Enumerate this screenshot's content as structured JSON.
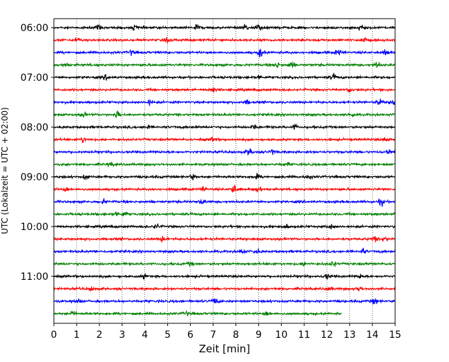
{
  "chart_data": {
    "type": "line",
    "chart_kind": "helicorder",
    "xlabel": "Zeit  [min]",
    "ylabel": "UTC (Lokalzeit = UTC + 02:00)",
    "xlim": [
      0,
      15
    ],
    "x_ticks": [
      "0",
      "1",
      "2",
      "3",
      "4",
      "5",
      "6",
      "7",
      "8",
      "9",
      "10",
      "11",
      "12",
      "13",
      "14",
      "15"
    ],
    "minutes_per_trace": 15,
    "row_labels": [
      {
        "row": 0,
        "text": "06:00"
      },
      {
        "row": 4,
        "text": "07:00"
      },
      {
        "row": 8,
        "text": "08:00"
      },
      {
        "row": 12,
        "text": "09:00"
      },
      {
        "row": 16,
        "text": "10:00"
      },
      {
        "row": 20,
        "text": "11:00"
      }
    ],
    "traces": [
      {
        "start": "06:00",
        "color": "#000000",
        "end_min": 15,
        "events": [
          [
            2.0,
            1.6
          ],
          [
            3.6,
            1.5
          ],
          [
            6.3,
            1.4
          ],
          [
            8.4,
            1.7
          ],
          [
            9.0,
            1.5
          ],
          [
            13.5,
            1.9
          ]
        ]
      },
      {
        "start": "06:15",
        "color": "#ff0000",
        "end_min": 15,
        "events": [
          [
            1.0,
            1.4
          ],
          [
            5.0,
            1.3
          ],
          [
            13.6,
            1.7
          ]
        ]
      },
      {
        "start": "06:30",
        "color": "#0000ff",
        "end_min": 15,
        "events": [
          [
            3.4,
            1.3
          ],
          [
            9.1,
            2.6
          ],
          [
            12.5,
            1.4
          ],
          [
            14.6,
            1.6
          ]
        ]
      },
      {
        "start": "06:45",
        "color": "#008000",
        "end_min": 15,
        "events": [
          [
            0.5,
            1.2
          ],
          [
            9.8,
            1.6
          ],
          [
            10.45,
            2.3
          ],
          [
            14.2,
            1.8
          ]
        ]
      },
      {
        "start": "07:00",
        "color": "#000000",
        "end_min": 15,
        "events": [
          [
            2.3,
            1.3
          ],
          [
            9.0,
            1.2
          ],
          [
            12.3,
            1.6
          ]
        ]
      },
      {
        "start": "07:15",
        "color": "#ff0000",
        "end_min": 15,
        "events": [
          [
            7.0,
            1.3
          ],
          [
            13.0,
            1.3
          ]
        ]
      },
      {
        "start": "07:30",
        "color": "#0000ff",
        "end_min": 15,
        "events": [
          [
            4.2,
            1.3
          ],
          [
            8.5,
            1.3
          ],
          [
            14.3,
            1.5
          ],
          [
            14.9,
            1.6
          ]
        ]
      },
      {
        "start": "07:45",
        "color": "#008000",
        "end_min": 15,
        "events": [
          [
            1.3,
            1.6
          ],
          [
            2.8,
            2.0
          ],
          [
            13.1,
            1.3
          ]
        ]
      },
      {
        "start": "08:00",
        "color": "#000000",
        "end_min": 15,
        "events": [
          [
            4.1,
            1.3
          ],
          [
            8.8,
            1.5
          ],
          [
            10.6,
            1.3
          ]
        ]
      },
      {
        "start": "08:15",
        "color": "#ff0000",
        "end_min": 15,
        "events": [
          [
            1.3,
            1.5
          ],
          [
            7.0,
            1.2
          ],
          [
            14.6,
            1.3
          ]
        ]
      },
      {
        "start": "08:30",
        "color": "#0000ff",
        "end_min": 15,
        "events": [
          [
            8.6,
            2.0
          ],
          [
            9.6,
            1.7
          ],
          [
            14.7,
            1.4
          ]
        ]
      },
      {
        "start": "08:45",
        "color": "#008000",
        "end_min": 15,
        "events": [
          [
            2.5,
            1.2
          ],
          [
            10.2,
            1.2
          ]
        ]
      },
      {
        "start": "09:00",
        "color": "#000000",
        "end_min": 15,
        "events": [
          [
            1.4,
            1.4
          ],
          [
            6.1,
            1.4
          ],
          [
            8.9,
            1.3
          ],
          [
            11.2,
            1.2
          ]
        ]
      },
      {
        "start": "09:15",
        "color": "#ff0000",
        "end_min": 15,
        "events": [
          [
            0.5,
            1.2
          ],
          [
            6.6,
            1.5
          ],
          [
            7.9,
            2.8
          ],
          [
            9.0,
            1.8
          ]
        ]
      },
      {
        "start": "09:30",
        "color": "#0000ff",
        "end_min": 15,
        "events": [
          [
            2.2,
            1.3
          ],
          [
            6.5,
            2.0
          ],
          [
            14.4,
            2.0
          ]
        ]
      },
      {
        "start": "09:45",
        "color": "#008000",
        "end_min": 15,
        "events": [
          [
            2.7,
            1.3
          ],
          [
            3.1,
            1.3
          ]
        ]
      },
      {
        "start": "10:00",
        "color": "#000000",
        "end_min": 15,
        "events": [
          [
            4.5,
            1.3
          ],
          [
            10.2,
            1.2
          ],
          [
            12.2,
            1.3
          ]
        ]
      },
      {
        "start": "10:15",
        "color": "#ff0000",
        "end_min": 15,
        "events": [
          [
            4.8,
            1.3
          ],
          [
            14.1,
            1.4
          ],
          [
            14.5,
            1.5
          ]
        ]
      },
      {
        "start": "10:30",
        "color": "#0000ff",
        "end_min": 15,
        "events": [
          [
            8.3,
            1.6
          ],
          [
            8.9,
            1.4
          ],
          [
            13.6,
            1.5
          ]
        ]
      },
      {
        "start": "10:45",
        "color": "#008000",
        "end_min": 15,
        "events": [
          [
            6.0,
            1.2
          ],
          [
            11.0,
            1.3
          ],
          [
            12.3,
            1.4
          ]
        ]
      },
      {
        "start": "11:00",
        "color": "#000000",
        "end_min": 15,
        "events": [
          [
            4.0,
            1.3
          ],
          [
            12.0,
            1.3
          ],
          [
            13.5,
            1.3
          ]
        ]
      },
      {
        "start": "11:15",
        "color": "#ff0000",
        "end_min": 15,
        "events": [
          [
            1.7,
            1.3
          ],
          [
            12.1,
            1.2
          ],
          [
            13.4,
            1.3
          ]
        ]
      },
      {
        "start": "11:30",
        "color": "#0000ff",
        "end_min": 15,
        "events": [
          [
            1.1,
            1.3
          ],
          [
            7.1,
            2.0
          ],
          [
            14.1,
            1.7
          ]
        ]
      },
      {
        "start": "11:45",
        "color": "#008000",
        "end_min": 12.65,
        "events": [
          [
            0.8,
            1.2
          ],
          [
            5.8,
            1.2
          ],
          [
            9.4,
            1.2
          ]
        ]
      }
    ],
    "grid": {
      "x": true,
      "style": "dotted"
    }
  }
}
